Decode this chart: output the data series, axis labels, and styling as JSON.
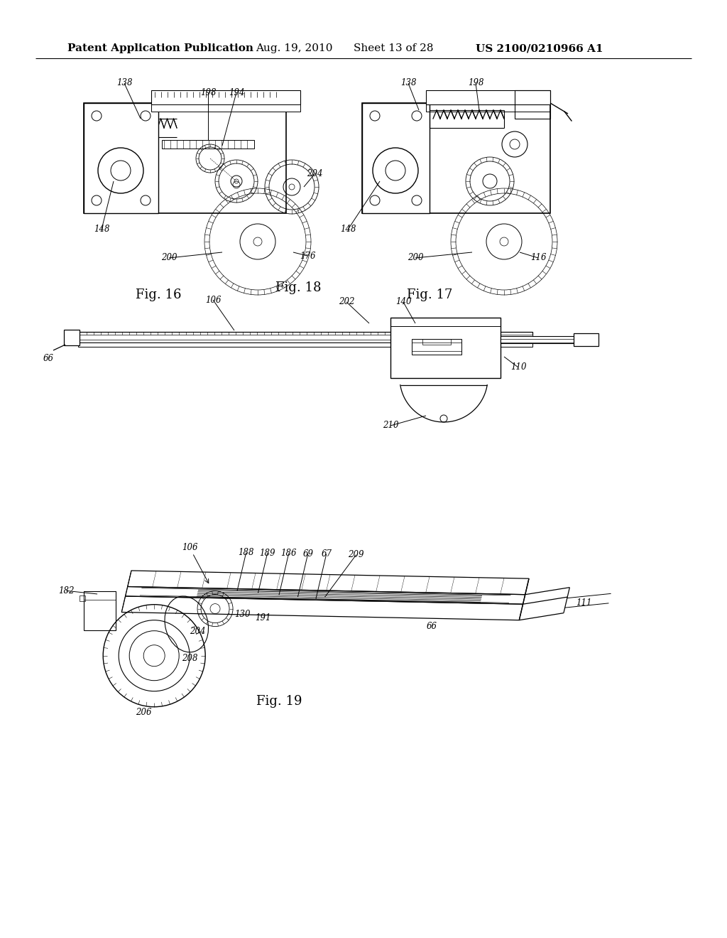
{
  "background_color": "#ffffff",
  "header_text": "Patent Application Publication",
  "header_date": "Aug. 19, 2010",
  "header_sheet": "Sheet 13 of 28",
  "header_patent": "US 2100/0210966 A1",
  "header_fontsize": 11,
  "fig16_label": "Fig. 16",
  "fig17_label": "Fig. 17",
  "fig18_label": "Fig. 18",
  "fig19_label": "Fig. 19",
  "fig_label_fontsize": 13
}
